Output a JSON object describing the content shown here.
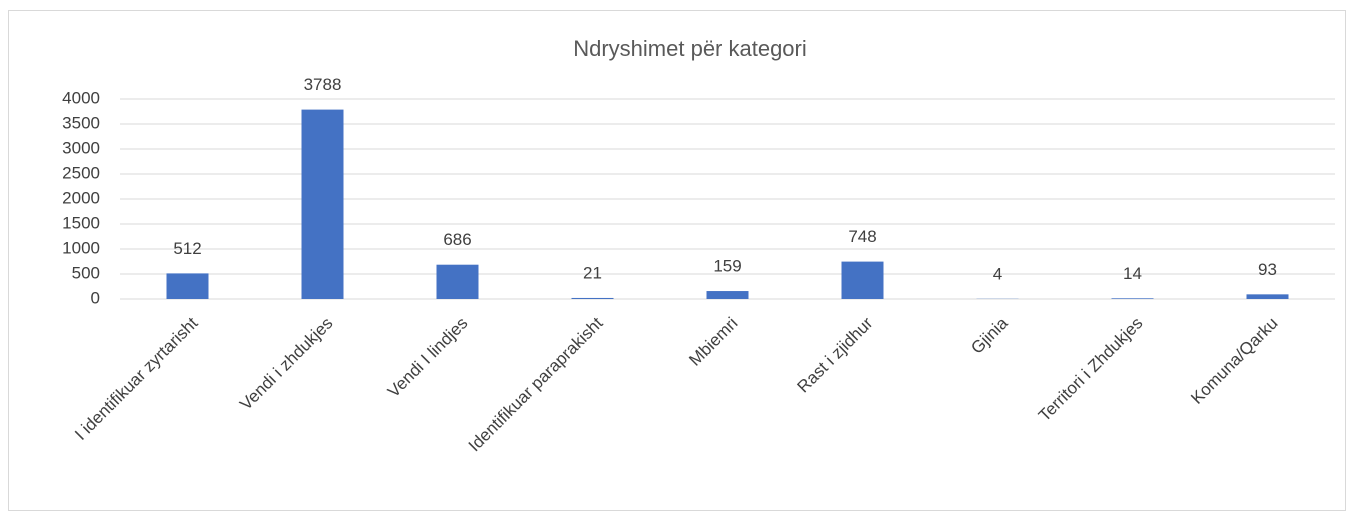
{
  "chart_data": {
    "type": "bar",
    "title": "Ndryshimet për kategori",
    "categories": [
      "I identifikuar zyrtarisht",
      "Vendi i zhdukjes",
      "Vendi I lindjes",
      "Identifikuar paraprakisht",
      "Mbiemri",
      "Rast i zjidhur",
      "Gjinia",
      "Territori i Zhdukjes",
      "Komuna/Qarku"
    ],
    "values": [
      512,
      3788,
      686,
      21,
      159,
      748,
      4,
      14,
      93
    ],
    "color": "#4472c4",
    "ylim": [
      0,
      4000
    ],
    "yticks": [
      0,
      500,
      1000,
      1500,
      2000,
      2500,
      3000,
      3500,
      4000
    ],
    "grid": true
  }
}
